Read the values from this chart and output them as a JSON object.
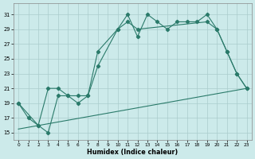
{
  "xlabel": "Humidex (Indice chaleur)",
  "bg_color": "#cceaea",
  "grid_color": "#aacccc",
  "line_color": "#2a7a6a",
  "xlim": [
    -0.5,
    23.5
  ],
  "ylim": [
    14.0,
    32.5
  ],
  "yticks": [
    15,
    17,
    19,
    21,
    23,
    25,
    27,
    29,
    31
  ],
  "xticks": [
    0,
    1,
    2,
    3,
    4,
    5,
    6,
    7,
    8,
    9,
    10,
    11,
    12,
    13,
    14,
    15,
    16,
    17,
    18,
    19,
    20,
    21,
    22,
    23
  ],
  "line1_x": [
    0,
    1,
    2,
    3,
    4,
    5,
    6,
    7,
    8,
    10,
    11,
    12,
    13,
    14,
    15,
    16,
    17,
    18,
    19,
    20,
    21,
    22,
    23
  ],
  "line1_y": [
    19,
    17,
    16,
    21,
    21,
    20,
    20,
    20,
    26,
    29,
    31,
    28,
    31,
    30,
    29,
    30,
    30,
    30,
    31,
    29,
    26,
    23,
    21
  ],
  "line2_x": [
    0,
    23
  ],
  "line2_y": [
    15.5,
    21.0
  ],
  "line3_x": [
    0,
    2,
    3,
    4,
    5,
    6,
    7,
    8,
    10,
    11,
    12,
    19,
    20,
    21,
    22,
    23
  ],
  "line3_y": [
    19,
    16,
    15,
    20,
    20,
    19,
    20,
    24,
    29,
    30,
    29,
    30,
    29,
    26,
    23,
    21
  ]
}
